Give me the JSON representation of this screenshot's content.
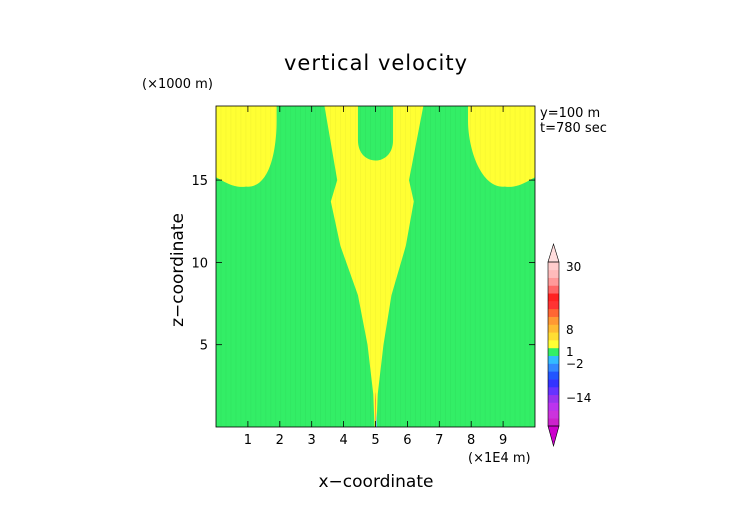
{
  "chart_data": {
    "type": "heatmap",
    "title": "vertical velocity",
    "xlabel": "x−coordinate",
    "ylabel": "z−coordinate",
    "x_unit_label": "(×1E4 m)",
    "y_unit_label": "(×1000 m)",
    "annotations": [
      "y=100  m",
      "t=780 sec"
    ],
    "xlim": [
      0,
      10
    ],
    "ylim": [
      0,
      19.5
    ],
    "x_ticks": [
      1,
      2,
      3,
      4,
      5,
      6,
      7,
      8,
      9
    ],
    "y_ticks": [
      5,
      10,
      15
    ],
    "background_color": "#33ee66",
    "feature_color": "#ffff33",
    "features": {
      "left_top_lobe": {
        "x_range": [
          0,
          1.9
        ],
        "lower_edge_z": 14.6,
        "color": "#ffff33"
      },
      "right_top_lobe": {
        "x_range": [
          7.9,
          10
        ],
        "lower_edge_z": 14.6,
        "color": "#ffff33"
      },
      "central_plume": {
        "width_profile": [
          {
            "z": 0.0,
            "x_left": 4.97,
            "x_right": 5.03
          },
          {
            "z": 2.0,
            "x_left": 4.93,
            "x_right": 5.07
          },
          {
            "z": 5.0,
            "x_left": 4.75,
            "x_right": 5.25
          },
          {
            "z": 8.0,
            "x_left": 4.45,
            "x_right": 5.5
          },
          {
            "z": 11.0,
            "x_left": 3.9,
            "x_right": 5.95
          },
          {
            "z": 13.7,
            "x_left": 3.6,
            "x_right": 6.2
          },
          {
            "z": 15.0,
            "x_left": 3.8,
            "x_right": 6.05
          },
          {
            "z": 19.5,
            "x_left": 3.4,
            "x_right": 6.5
          }
        ],
        "inner_green_arch": {
          "x_range": [
            4.45,
            5.55
          ],
          "bottom_z": 15.9
        },
        "color": "#ffff33"
      }
    },
    "colorbar": {
      "tick_labels": [
        "30",
        "8",
        "1",
        "−2",
        "−14"
      ],
      "segments": [
        {
          "from": -30,
          "to": -25,
          "color": "#cc22cc"
        },
        {
          "from": -25,
          "to": -20,
          "color": "#cc33dd"
        },
        {
          "from": -20,
          "to": -16,
          "color": "#bb33ee"
        },
        {
          "from": -16,
          "to": -12,
          "color": "#9933ee"
        },
        {
          "from": -12,
          "to": -8,
          "color": "#6633ff"
        },
        {
          "from": -8,
          "to": -6,
          "color": "#3333ff"
        },
        {
          "from": -6,
          "to": -4,
          "color": "#2255ff"
        },
        {
          "from": -4,
          "to": -2,
          "color": "#3388ff"
        },
        {
          "from": -2,
          "to": -1,
          "color": "#33bbff"
        },
        {
          "from": -1,
          "to": 0,
          "color": "#33ee66"
        },
        {
          "from": 0,
          "to": 1,
          "color": "#ffff33"
        },
        {
          "from": 1,
          "to": 2,
          "color": "#ffdd33"
        },
        {
          "from": 2,
          "to": 4,
          "color": "#ffbb33"
        },
        {
          "from": 4,
          "to": 6,
          "color": "#ff9933"
        },
        {
          "from": 6,
          "to": 8,
          "color": "#ff6633"
        },
        {
          "from": 8,
          "to": 12,
          "color": "#ff3333"
        },
        {
          "from": 12,
          "to": 16,
          "color": "#ff2222"
        },
        {
          "from": 16,
          "to": 20,
          "color": "#ff6666"
        },
        {
          "from": 20,
          "to": 25,
          "color": "#ff9999"
        },
        {
          "from": 25,
          "to": 30,
          "color": "#ffbbbb"
        },
        {
          "from": 30,
          "to": 35,
          "color": "#ffcccc"
        }
      ]
    }
  }
}
